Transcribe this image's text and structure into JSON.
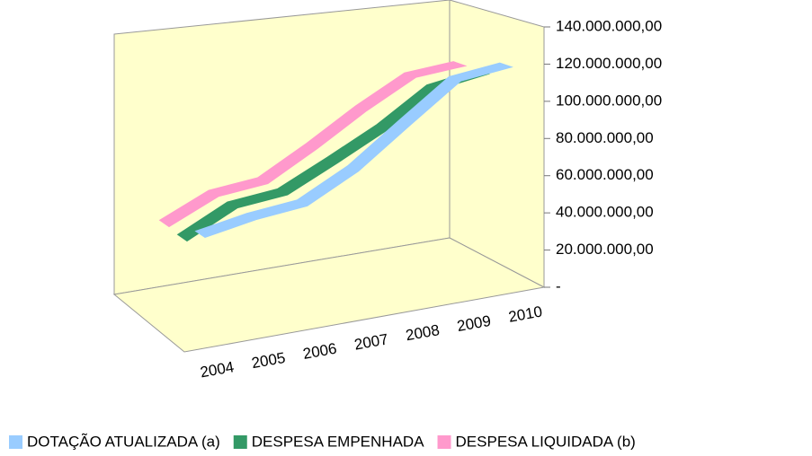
{
  "chart_data": {
    "type": "line3d",
    "categories": [
      "2004",
      "2005",
      "2006",
      "2007",
      "2008",
      "2009",
      "2010"
    ],
    "series": [
      {
        "name": "DOTAÇÃO ATUALIZADA (a)",
        "color": "#99ccff",
        "values": [
          53000000,
          58000000,
          61000000,
          75000000,
          95000000,
          115000000,
          119000000
        ]
      },
      {
        "name": "DESPESA EMPENHADA",
        "color": "#339966",
        "values": [
          45000000,
          58000000,
          61000000,
          74000000,
          88000000,
          106000000,
          111000000
        ]
      },
      {
        "name": "DESPESA LIQUIDADA (b)",
        "color": "#ff99cc",
        "values": [
          46000000,
          58000000,
          61000000,
          76000000,
          93000000,
          108000000,
          111000000
        ]
      }
    ],
    "ylim": [
      0,
      140000000
    ],
    "yticks": [
      {
        "value": 0,
        "label": "-"
      },
      {
        "value": 20000000,
        "label": "20.000.000,00"
      },
      {
        "value": 40000000,
        "label": "40.000.000,00"
      },
      {
        "value": 60000000,
        "label": "60.000.000,00"
      },
      {
        "value": 80000000,
        "label": "80.000.000,00"
      },
      {
        "value": 100000000,
        "label": "100.000.000,00"
      },
      {
        "value": 120000000,
        "label": "120.000.000,00"
      },
      {
        "value": 140000000,
        "label": "140.000.000,00"
      }
    ],
    "legend": "bottom"
  }
}
